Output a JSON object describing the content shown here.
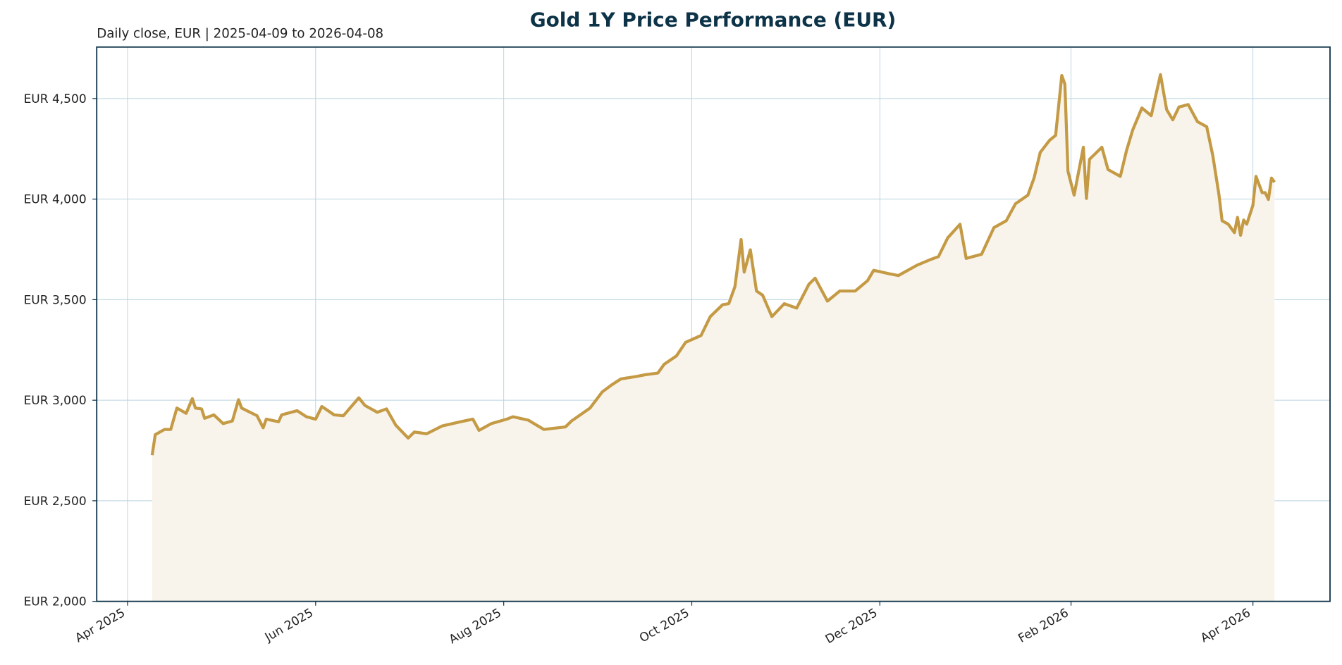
{
  "chart_data": {
    "type": "line",
    "title": "Gold 1Y Price Performance (EUR)",
    "subtitle": "Daily close, EUR | 2025-04-09 to 2026-04-08",
    "color": "#c49a45",
    "fill_color": "#f8f4ec",
    "grid": true,
    "x": [
      "2025-04-09",
      "2025-04-10",
      "2025-04-13",
      "2025-04-15",
      "2025-04-17",
      "2025-04-20",
      "2025-04-22",
      "2025-04-23",
      "2025-04-25",
      "2025-04-26",
      "2025-04-29",
      "2025-05-02",
      "2025-05-05",
      "2025-05-07",
      "2025-05-08",
      "2025-05-13",
      "2025-05-15",
      "2025-05-16",
      "2025-05-20",
      "2025-05-21",
      "2025-05-26",
      "2025-05-29",
      "2025-06-01",
      "2025-06-03",
      "2025-06-07",
      "2025-06-10",
      "2025-06-15",
      "2025-06-17",
      "2025-06-21",
      "2025-06-24",
      "2025-06-27",
      "2025-07-01",
      "2025-07-03",
      "2025-07-07",
      "2025-07-12",
      "2025-07-18",
      "2025-07-22",
      "2025-07-24",
      "2025-07-28",
      "2025-08-02",
      "2025-08-04",
      "2025-08-09",
      "2025-08-14",
      "2025-08-21",
      "2025-08-23",
      "2025-08-29",
      "2025-09-02",
      "2025-09-05",
      "2025-09-08",
      "2025-09-13",
      "2025-09-16",
      "2025-09-20",
      "2025-09-22",
      "2025-09-26",
      "2025-09-29",
      "2025-10-04",
      "2025-10-07",
      "2025-10-11",
      "2025-10-13",
      "2025-10-15",
      "2025-10-17",
      "2025-10-18",
      "2025-10-20",
      "2025-10-22",
      "2025-10-24",
      "2025-10-27",
      "2025-10-31",
      "2025-11-04",
      "2025-11-08",
      "2025-11-10",
      "2025-11-14",
      "2025-11-18",
      "2025-11-23",
      "2025-11-27",
      "2025-11-29",
      "2025-12-04",
      "2025-12-07",
      "2025-12-13",
      "2025-12-17",
      "2025-12-20",
      "2025-12-23",
      "2025-12-27",
      "2025-12-29",
      "2026-01-03",
      "2026-01-07",
      "2026-01-11",
      "2026-01-14",
      "2026-01-18",
      "2026-01-20",
      "2026-01-22",
      "2026-01-25",
      "2026-01-27",
      "2026-01-29",
      "2026-01-30",
      "2026-01-31",
      "2026-02-02",
      "2026-02-05",
      "2026-02-06",
      "2026-02-07",
      "2026-02-11",
      "2026-02-13",
      "2026-02-17",
      "2026-02-19",
      "2026-02-21",
      "2026-02-24",
      "2026-02-27",
      "2026-03-02",
      "2026-03-04",
      "2026-03-06",
      "2026-03-08",
      "2026-03-11",
      "2026-03-14",
      "2026-03-17",
      "2026-03-19",
      "2026-03-21",
      "2026-03-22",
      "2026-03-24",
      "2026-03-26",
      "2026-03-27",
      "2026-03-28",
      "2026-03-29",
      "2026-03-30",
      "2026-04-01",
      "2026-04-02",
      "2026-04-04",
      "2026-04-05",
      "2026-04-06",
      "2026-04-07",
      "2026-04-08"
    ],
    "values": [
      2727,
      2829,
      2855,
      2855,
      2961,
      2935,
      3008,
      2961,
      2957,
      2910,
      2927,
      2884,
      2897,
      3003,
      2961,
      2923,
      2863,
      2906,
      2893,
      2927,
      2948,
      2918,
      2906,
      2969,
      2927,
      2923,
      3012,
      2974,
      2940,
      2957,
      2876,
      2812,
      2842,
      2833,
      2872,
      2893,
      2906,
      2850,
      2884,
      2906,
      2918,
      2901,
      2855,
      2867,
      2897,
      2961,
      3042,
      3076,
      3106,
      3118,
      3127,
      3135,
      3178,
      3220,
      3288,
      3322,
      3416,
      3475,
      3480,
      3565,
      3799,
      3637,
      3748,
      3543,
      3522,
      3416,
      3480,
      3458,
      3577,
      3607,
      3493,
      3543,
      3543,
      3594,
      3646,
      3629,
      3620,
      3671,
      3697,
      3714,
      3807,
      3875,
      3705,
      3726,
      3858,
      3892,
      3977,
      4020,
      4105,
      4232,
      4292,
      4317,
      4615,
      4572,
      4139,
      4020,
      4258,
      4003,
      4198,
      4258,
      4147,
      4113,
      4241,
      4343,
      4453,
      4415,
      4619,
      4445,
      4394,
      4458,
      4470,
      4385,
      4360,
      4215,
      4020,
      3892,
      3875,
      3833,
      3909,
      3820,
      3896,
      3875,
      3969,
      4113,
      4032,
      4032,
      3998,
      4105,
      4084
    ],
    "xlim": [
      "2025-03-22",
      "2026-04-26"
    ],
    "xticks": [
      {
        "value": "2025-04-01",
        "label": "Apr 2025"
      },
      {
        "value": "2025-06-01",
        "label": "Jun 2025"
      },
      {
        "value": "2025-08-01",
        "label": "Aug 2025"
      },
      {
        "value": "2025-10-01",
        "label": "Oct 2025"
      },
      {
        "value": "2025-12-01",
        "label": "Dec 2025"
      },
      {
        "value": "2026-02-01",
        "label": "Feb 2026"
      },
      {
        "value": "2026-04-01",
        "label": "Apr 2026"
      }
    ],
    "ylim": [
      2000,
      4756
    ],
    "yticks": [
      {
        "value": 2000,
        "label": "EUR 2,000"
      },
      {
        "value": 2500,
        "label": "EUR 2,500"
      },
      {
        "value": 3000,
        "label": "EUR 3,000"
      },
      {
        "value": 3500,
        "label": "EUR 3,500"
      },
      {
        "value": 4000,
        "label": "EUR 4,000"
      },
      {
        "value": 4500,
        "label": "EUR 4,500"
      }
    ]
  }
}
